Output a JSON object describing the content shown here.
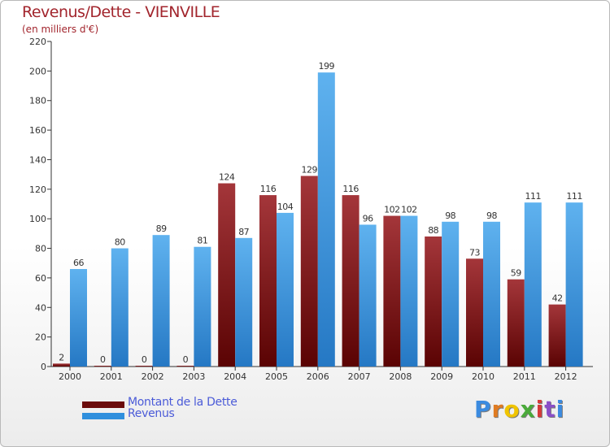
{
  "chart_data": {
    "type": "bar",
    "title": "Revenus/Dette - VIENVILLE",
    "subtitle": "(en milliers d'€)",
    "categories": [
      "2000",
      "2001",
      "2002",
      "2003",
      "2004",
      "2005",
      "2006",
      "2007",
      "2008",
      "2009",
      "2010",
      "2011",
      "2012"
    ],
    "series": [
      {
        "name": "Montant de la Dette",
        "color": "#6b0b0b",
        "values": [
          2,
          0,
          0,
          0,
          124,
          116,
          129,
          116,
          102,
          88,
          73,
          59,
          42
        ]
      },
      {
        "name": "Revenus",
        "color": "#2f8fdd",
        "values": [
          66,
          80,
          89,
          81,
          87,
          104,
          199,
          96,
          102,
          98,
          98,
          111,
          111
        ]
      }
    ],
    "yticks": [
      0,
      20,
      40,
      60,
      80,
      100,
      120,
      140,
      160,
      180,
      200,
      220
    ],
    "ylim": [
      0,
      220
    ],
    "grid": false,
    "legend": "bottom-left"
  },
  "logo": {
    "letters": [
      "P",
      "r",
      "o",
      "x",
      "i",
      "t",
      "i"
    ],
    "colors": [
      "#3b8be0",
      "#e07b21",
      "#f0c400",
      "#4aaa3a",
      "#d63a3a",
      "#8a4fc8",
      "#3b8be0"
    ]
  }
}
